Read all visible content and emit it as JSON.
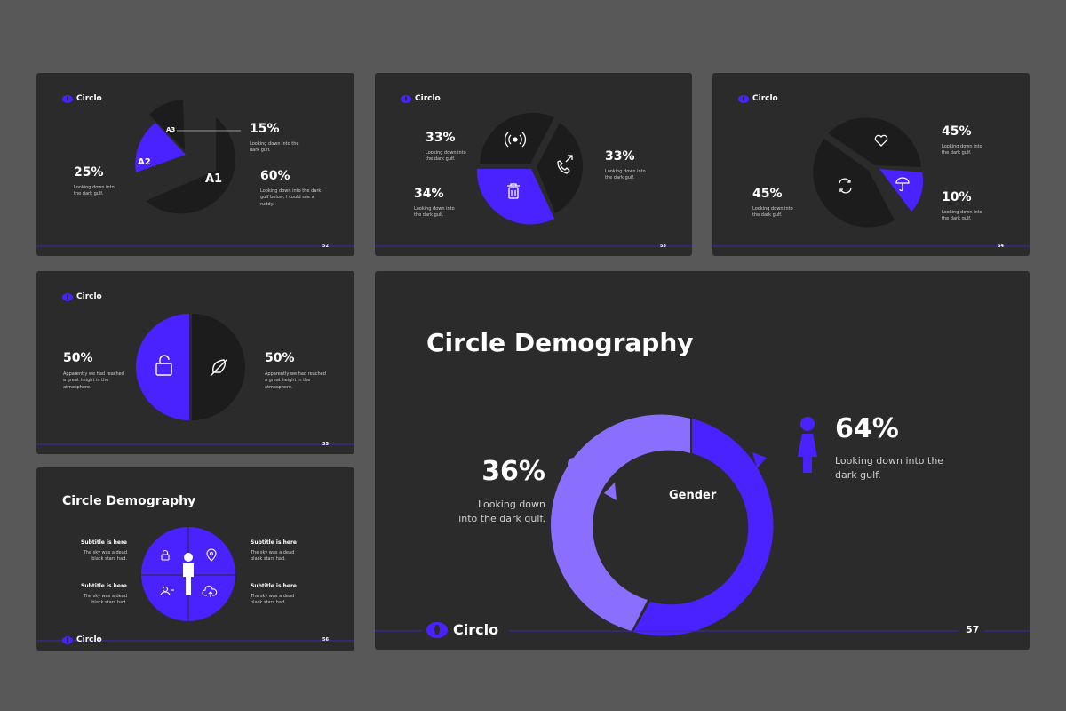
{
  "brand": {
    "name": "Circlo",
    "accent": "#4a22ff",
    "accent_light": "#8a6fff",
    "slide_bg": "#2b2b2b",
    "dark_slice": "#1c1c1c",
    "page_bg": "#585858"
  },
  "slides": {
    "s52": {
      "number": "52",
      "labels": {
        "a1": "A1",
        "a2": "A2",
        "a3": "A3"
      },
      "stat_15": {
        "value": "15%",
        "text": "Looking down into the dark gulf."
      },
      "stat_25": {
        "value": "25%",
        "text": "Looking down into the dark gulf."
      },
      "stat_60": {
        "value": "60%",
        "text": "Looking down into the dark gulf below, I could see a ruddy."
      }
    },
    "s53": {
      "number": "53",
      "stat_a": {
        "value": "33%",
        "text": "Looking down into the dark gulf."
      },
      "stat_b": {
        "value": "33%",
        "text": "Looking down into the dark gulf."
      },
      "stat_c": {
        "value": "34%",
        "text": "Looking down into the dark gulf."
      }
    },
    "s54": {
      "number": "54",
      "stat_a": {
        "value": "45%",
        "text": "Looking down into the dark gulf."
      },
      "stat_b": {
        "value": "45%",
        "text": "Looking down into the dark gulf."
      },
      "stat_c": {
        "value": "10%",
        "text": "Looking down into the dark gulf."
      }
    },
    "s55": {
      "number": "55",
      "stat_left": {
        "value": "50%",
        "text": "Apparently we had reached a great height in the atmosphere."
      },
      "stat_right": {
        "value": "50%",
        "text": "Apparently we had reached a great height in the atmosphere."
      }
    },
    "s56": {
      "number": "56",
      "title": "Circle Demography",
      "items": [
        {
          "subtitle": "Subtitle is here",
          "text": "The sky was a dead black stars had."
        },
        {
          "subtitle": "Subtitle is here",
          "text": "The sky was a dead black stars had."
        },
        {
          "subtitle": "Subtitle is here",
          "text": "The sky was a dead black stars had."
        },
        {
          "subtitle": "Subtitle is here",
          "text": "The sky was a dead black stars had."
        }
      ]
    },
    "s57": {
      "number": "57",
      "title": "Circle Demography",
      "center_label": "Gender",
      "female": {
        "value": "36%",
        "text": "Looking down into the dark gulf."
      },
      "male": {
        "value": "64%",
        "text": "Looking down into the dark gulf."
      }
    }
  },
  "icons": [
    "radio-signal-icon",
    "phone-call-icon",
    "trash-icon",
    "heart-icon",
    "umbrella-icon",
    "refresh-icon",
    "unlock-icon",
    "feather-icon",
    "lock-icon",
    "location-pin-icon",
    "user-icon",
    "cloud-upload-icon",
    "person-icon"
  ]
}
